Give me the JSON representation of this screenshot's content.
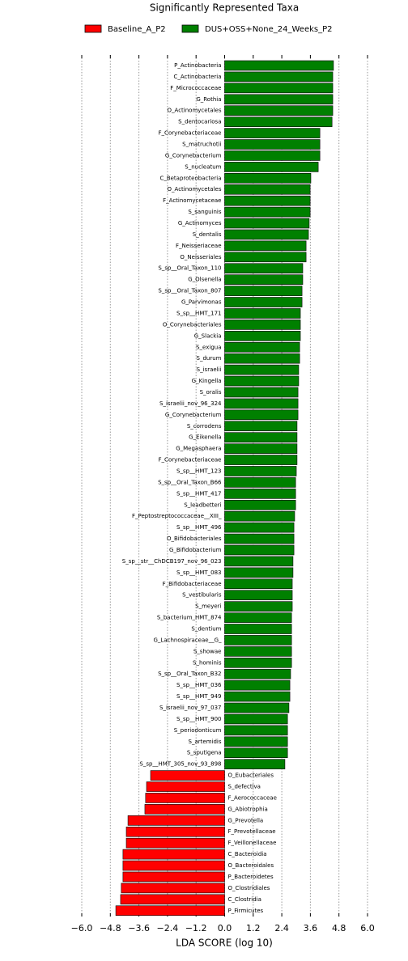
{
  "chart_data": {
    "type": "barh",
    "title": "Significantly Represented Taxa",
    "xlabel": "LDA SCORE (log 10)",
    "categories": [
      "P_Actinobacteria",
      "C_Actinobacteria",
      "F_Micrococcaceae",
      "G_Rothia",
      "O_Actinomycetales",
      "S_dentocariosa",
      "F_Corynebacteriaceae",
      "S_matruchotii",
      "G_Corynebacterium",
      "S_nucleatum",
      "C_Betaproteobacteria",
      "O_Actinomycetales",
      "F_Actinomycetaceae",
      "S_sanguinis",
      "G_Actinomyces",
      "S_dentalis",
      "F_Neisseriaceae",
      "O_Neisseriales",
      "S_sp__Oral_Taxon_110",
      "G_Olsenella",
      "S_sp__Oral_Taxon_807",
      "G_Parvimonas",
      "S_sp__HMT_171",
      "O_Corynebacteriales",
      "G_Slackia",
      "S_exigua",
      "S_durum",
      "S_israelii",
      "G_Kingella",
      "S_oralis",
      "S_israelii_nov_96_324",
      "G_Corynebacterium",
      "S_corrodens",
      "G_Eikenella",
      "G_Megasphaera",
      "F_Corynebacteriaceae",
      "S_sp__HMT_123",
      "S_sp__Oral_Taxon_B66",
      "S_sp__HMT_417",
      "S_leadbetteri",
      "F_Peptostreptococcaceae__XIII_",
      "S_sp__HMT_496",
      "O_Bifidobacteriales",
      "G_Bifidobacterium",
      "S_sp__str__ChDCB197_nov_96_023",
      "S_sp__HMT_083",
      "F_Bifidobacteriaceae",
      "S_vestibularis",
      "S_meyeri",
      "S_bacterium_HMT_874",
      "S_dentium",
      "G_Lachnospiraceae__G_",
      "S_showae",
      "S_hominis",
      "S_sp__Oral_Taxon_B32",
      "S_sp__HMT_036",
      "S_sp__HMT_949",
      "S_israelii_nov_97_037",
      "S_sp__HMT_900",
      "S_periodonticum",
      "S_artemidis",
      "S_sputigena",
      "S_sp__HMT_305_nov_93_898",
      "O_Eubacteriales",
      "S_defectiva",
      "F_Aerococcaceae",
      "G_Abiotrophia",
      "G_Prevotella",
      "F_Prevotellaceae",
      "F_Veillonellaceae",
      "C_Bacteroidia",
      "O_Bacteroidales",
      "P_Bacteroidetes",
      "O_Clostridiales",
      "C_Clostridia",
      "P_Firmicutes"
    ],
    "series": [
      {
        "name": "Baseline_A_P2",
        "color": "#ff0000",
        "values": [
          null,
          null,
          null,
          null,
          null,
          null,
          null,
          null,
          null,
          null,
          null,
          null,
          null,
          null,
          null,
          null,
          null,
          null,
          null,
          null,
          null,
          null,
          null,
          null,
          null,
          null,
          null,
          null,
          null,
          null,
          null,
          null,
          null,
          null,
          null,
          null,
          null,
          null,
          null,
          null,
          null,
          null,
          null,
          null,
          null,
          null,
          null,
          null,
          null,
          null,
          null,
          null,
          null,
          null,
          null,
          null,
          null,
          null,
          null,
          null,
          null,
          null,
          null,
          -3.11,
          -3.28,
          -3.32,
          -3.35,
          -4.06,
          -4.13,
          -4.13,
          -4.27,
          -4.27,
          -4.27,
          -4.34,
          -4.37,
          -4.57
        ]
      },
      {
        "name": "DUS+OSS+None_24_Weeks_P2",
        "color": "#008000",
        "values": [
          4.57,
          4.54,
          4.54,
          4.54,
          4.54,
          4.51,
          4.0,
          4.0,
          4.0,
          3.93,
          3.62,
          3.59,
          3.59,
          3.59,
          3.55,
          3.52,
          3.42,
          3.42,
          3.28,
          3.28,
          3.25,
          3.25,
          3.18,
          3.18,
          3.18,
          3.15,
          3.15,
          3.11,
          3.11,
          3.08,
          3.08,
          3.08,
          3.04,
          3.04,
          3.04,
          3.04,
          3.01,
          2.98,
          2.98,
          2.98,
          2.94,
          2.91,
          2.91,
          2.91,
          2.87,
          2.87,
          2.84,
          2.84,
          2.84,
          2.81,
          2.81,
          2.81,
          2.81,
          2.81,
          2.77,
          2.74,
          2.74,
          2.7,
          2.64,
          2.64,
          2.64,
          2.64,
          2.53,
          null,
          null,
          null,
          null,
          null,
          null,
          null,
          null,
          null,
          null,
          null,
          null,
          null
        ]
      }
    ],
    "xlim": [
      -6.0,
      6.0
    ],
    "xticks": [
      {
        "value": -6.0,
        "label": "−6.0"
      },
      {
        "value": -4.8,
        "label": "−4.8"
      },
      {
        "value": -3.6,
        "label": "−3.6"
      },
      {
        "value": -2.4,
        "label": "−2.4"
      },
      {
        "value": -1.2,
        "label": "−1.2"
      },
      {
        "value": 0,
        "label": "0.0"
      },
      1.2,
      2.4,
      3.6,
      4.8,
      {
        "value": 6.0,
        "label": "6.0"
      }
    ],
    "grid": true
  }
}
